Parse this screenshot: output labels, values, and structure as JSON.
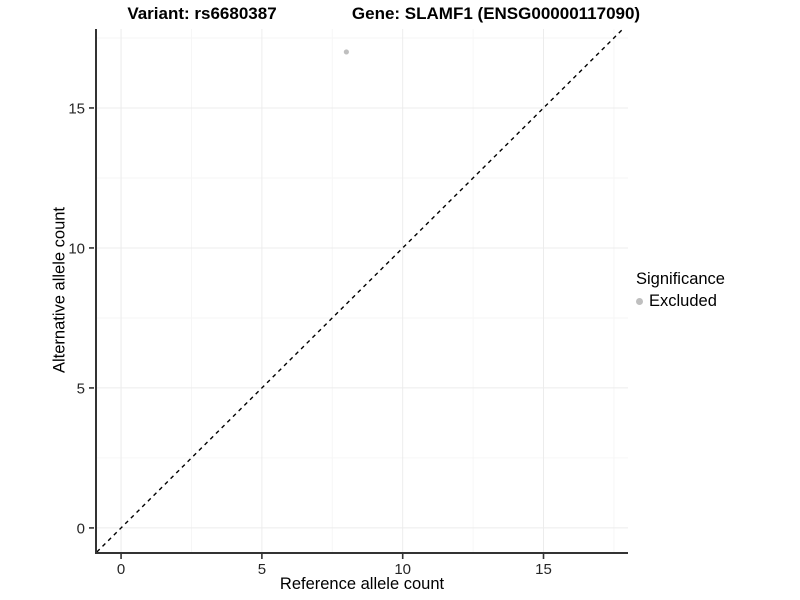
{
  "chart_data": {
    "type": "scatter",
    "titles": {
      "left": "Variant: rs6680387",
      "right": "Gene: SLAMF1 (ENSG00000117090)"
    },
    "xlabel": "Reference allele count",
    "ylabel": "Alternative allele count",
    "xlim": [
      -0.89,
      18.0
    ],
    "ylim": [
      -0.86,
      17.82
    ],
    "xticks": [
      0,
      5,
      10,
      15
    ],
    "yticks": [
      0,
      5,
      10,
      15
    ],
    "xminor": [
      2.5,
      7.5,
      12.5,
      17.5
    ],
    "yminor": [
      2.5,
      7.5,
      12.5,
      17.5
    ],
    "grid": {
      "major": true,
      "minor": true
    },
    "series": [
      {
        "name": "Excluded",
        "marker": "circle",
        "color": "#bfbfbf",
        "points": [
          {
            "x": 8,
            "y": 17
          }
        ]
      }
    ],
    "reference_line": {
      "kind": "identity",
      "equation": "y = x",
      "linetype": "dashed",
      "color": "#000000"
    },
    "legend": {
      "title": "Significance",
      "position": "right",
      "items": [
        {
          "label": "Excluded",
          "marker": "circle",
          "color": "#bfbfbf"
        }
      ]
    },
    "colors": {
      "axis_line": "#333333",
      "tick_text": "#262626",
      "grid_major": "#ececec",
      "grid_minor": "#f6f6f6",
      "background": "#ffffff"
    }
  }
}
